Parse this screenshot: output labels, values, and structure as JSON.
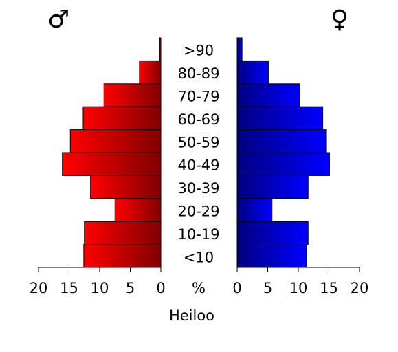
{
  "chart_data": {
    "type": "pyramid",
    "title": "Heiloo",
    "center_label": "%",
    "categories": [
      "<10",
      "10-19",
      "20-29",
      "30-39",
      "40-49",
      "50-59",
      "60-69",
      "70-79",
      "80-89",
      ">90"
    ],
    "series": [
      {
        "name": "♂",
        "color": "#ff0000",
        "values": [
          12.6,
          12.5,
          7.5,
          11.5,
          16.1,
          14.8,
          12.7,
          9.3,
          3.5,
          0.2
        ]
      },
      {
        "name": "♀",
        "color": "#0000ff",
        "values": [
          11.3,
          11.6,
          5.7,
          11.6,
          15.1,
          14.5,
          14.0,
          10.2,
          5.1,
          0.8
        ]
      }
    ],
    "xlim": [
      0,
      20
    ],
    "xticks": [
      0,
      5,
      10,
      15,
      20
    ]
  }
}
